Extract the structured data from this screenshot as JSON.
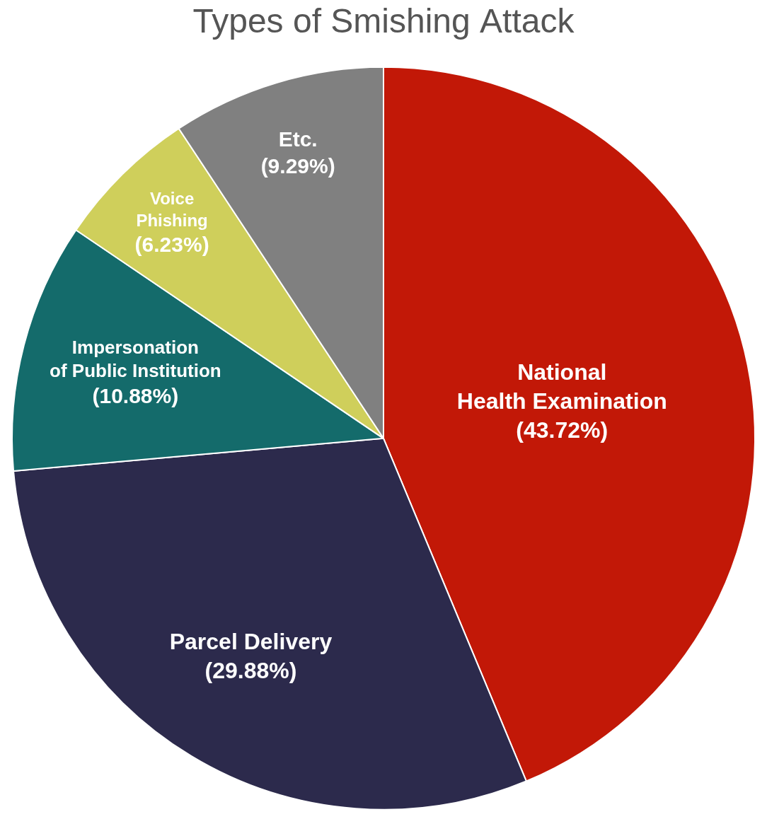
{
  "chart_data": {
    "type": "pie",
    "title": "Types of Smishing Attack",
    "categories": [
      "National Health Examination",
      "Parcel Delivery",
      "Impersonation of Public Institution",
      "Voice Phishing",
      "Etc."
    ],
    "values": [
      43.72,
      29.88,
      10.88,
      6.23,
      9.29
    ],
    "value_labels": [
      "(43.72%)",
      "(29.88%)",
      "(10.88%)",
      "(6.23%)",
      "(9.29%)"
    ],
    "colors": [
      "#c21807",
      "#2c2a4c",
      "#146b6b",
      "#cfcf5b",
      "#808080"
    ],
    "data_labels": true
  }
}
